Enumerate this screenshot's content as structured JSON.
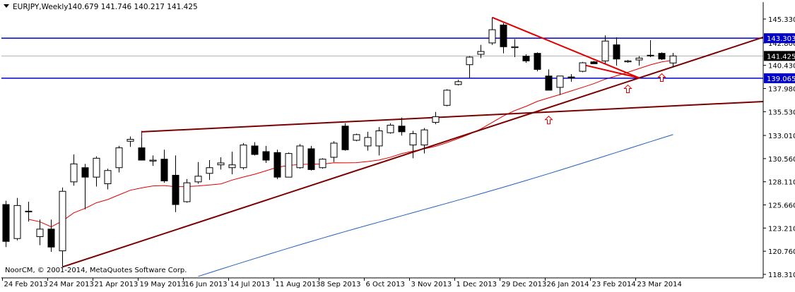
{
  "header": {
    "symbol": "EURJPY,Weekly",
    "ohlc": "140.679 141.746 140.217 141.425"
  },
  "copyright": "NoorCM, © 2001-2014, MetaQuotes Software Corp.",
  "colors": {
    "background": "#ffffff",
    "bull_candle": "#ffffff",
    "bear_candle": "#000000",
    "candle_outline": "#000000",
    "level_line": "#0000cc",
    "trendline": "#7a0000",
    "wedge_line": "#e00000",
    "ma_fast": "#e00000",
    "ma_slow": "#1f5fbf",
    "arrow": "#e00000",
    "current_price_box": "#000000",
    "level_box": "#0000cc"
  },
  "chart_data": {
    "type": "candlestick",
    "timeframe": "Weekly",
    "ylim": [
      118.3,
      146.5
    ],
    "y_ticks": [
      "145.330",
      "142.800",
      "140.430",
      "137.980",
      "135.530",
      "133.010",
      "130.560",
      "128.110",
      "125.660",
      "123.210",
      "120.760",
      "118.310"
    ],
    "x_ticks": [
      "24 Feb 2013",
      "24 Mar 2013",
      "21 Apr 2013",
      "19 May 2013",
      "16 Jun 2013",
      "14 Jul 2013",
      "11 Aug 2013",
      "8 Sep 2013",
      "6 Oct 2013",
      "3 Nov 2013",
      "1 Dec 2013",
      "29 Dec 2013",
      "26 Jan 2014",
      "23 Feb 2014",
      "23 Mar 2014"
    ],
    "x_tick_index": [
      0,
      4,
      8,
      12,
      16,
      20,
      24,
      28,
      32,
      36,
      40,
      44,
      48,
      52,
      56
    ],
    "candles": [
      {
        "o": 125.7,
        "h": 126.1,
        "l": 121.2,
        "c": 121.8
      },
      {
        "o": 122.1,
        "h": 126.4,
        "l": 121.9,
        "c": 125.6
      },
      {
        "o": 125.0,
        "h": 126.0,
        "l": 123.9,
        "c": 125.0
      },
      {
        "o": 122.3,
        "h": 124.1,
        "l": 121.4,
        "c": 123.1
      },
      {
        "o": 123.1,
        "h": 124.1,
        "l": 120.7,
        "c": 121.2
      },
      {
        "o": 120.8,
        "h": 127.5,
        "l": 119.1,
        "c": 127.1
      },
      {
        "o": 128.1,
        "h": 131.0,
        "l": 127.7,
        "c": 130.0
      },
      {
        "o": 129.6,
        "h": 130.0,
        "l": 125.2,
        "c": 128.6
      },
      {
        "o": 128.6,
        "h": 130.8,
        "l": 127.6,
        "c": 130.6
      },
      {
        "o": 127.9,
        "h": 129.5,
        "l": 127.3,
        "c": 129.3
      },
      {
        "o": 129.6,
        "h": 131.9,
        "l": 129.1,
        "c": 131.7
      },
      {
        "o": 132.4,
        "h": 132.9,
        "l": 131.8,
        "c": 132.6
      },
      {
        "o": 131.7,
        "h": 132.8,
        "l": 130.4,
        "c": 130.4
      },
      {
        "o": 130.3,
        "h": 130.9,
        "l": 129.8,
        "c": 130.4
      },
      {
        "o": 130.5,
        "h": 131.5,
        "l": 128.0,
        "c": 128.2
      },
      {
        "o": 128.8,
        "h": 130.9,
        "l": 124.9,
        "c": 125.7
      },
      {
        "o": 126.0,
        "h": 128.4,
        "l": 125.9,
        "c": 128.0
      },
      {
        "o": 128.1,
        "h": 130.2,
        "l": 127.9,
        "c": 128.7
      },
      {
        "o": 129.0,
        "h": 130.4,
        "l": 128.3,
        "c": 129.6
      },
      {
        "o": 129.9,
        "h": 130.7,
        "l": 129.4,
        "c": 130.1
      },
      {
        "o": 129.6,
        "h": 131.3,
        "l": 128.9,
        "c": 129.9
      },
      {
        "o": 129.6,
        "h": 132.2,
        "l": 129.4,
        "c": 132.0
      },
      {
        "o": 131.9,
        "h": 132.3,
        "l": 130.9,
        "c": 131.0
      },
      {
        "o": 131.3,
        "h": 131.9,
        "l": 130.1,
        "c": 130.4
      },
      {
        "o": 131.2,
        "h": 131.5,
        "l": 128.4,
        "c": 128.6
      },
      {
        "o": 128.6,
        "h": 131.2,
        "l": 128.6,
        "c": 131.1
      },
      {
        "o": 129.6,
        "h": 132.1,
        "l": 129.5,
        "c": 131.9
      },
      {
        "o": 131.6,
        "h": 131.9,
        "l": 129.3,
        "c": 129.4
      },
      {
        "o": 129.6,
        "h": 130.6,
        "l": 129.5,
        "c": 130.5
      },
      {
        "o": 130.7,
        "h": 132.4,
        "l": 130.2,
        "c": 132.2
      },
      {
        "o": 134.0,
        "h": 134.3,
        "l": 131.4,
        "c": 131.5
      },
      {
        "o": 132.5,
        "h": 133.2,
        "l": 132.4,
        "c": 133.1
      },
      {
        "o": 131.9,
        "h": 133.4,
        "l": 131.4,
        "c": 132.8
      },
      {
        "o": 131.9,
        "h": 133.9,
        "l": 130.9,
        "c": 133.5
      },
      {
        "o": 133.3,
        "h": 134.3,
        "l": 133.2,
        "c": 134.1
      },
      {
        "o": 134.0,
        "h": 134.9,
        "l": 133.0,
        "c": 133.4
      },
      {
        "o": 132.0,
        "h": 133.5,
        "l": 130.6,
        "c": 133.2
      },
      {
        "o": 132.0,
        "h": 133.8,
        "l": 131.1,
        "c": 133.6
      },
      {
        "o": 134.4,
        "h": 135.5,
        "l": 134.2,
        "c": 135.0
      },
      {
        "o": 136.2,
        "h": 137.9,
        "l": 136.1,
        "c": 137.8
      },
      {
        "o": 138.4,
        "h": 138.9,
        "l": 138.3,
        "c": 138.7
      },
      {
        "o": 140.5,
        "h": 141.4,
        "l": 139.1,
        "c": 141.3
      },
      {
        "o": 141.6,
        "h": 142.6,
        "l": 141.2,
        "c": 141.9
      },
      {
        "o": 142.8,
        "h": 145.5,
        "l": 142.6,
        "c": 144.2
      },
      {
        "o": 144.7,
        "h": 144.9,
        "l": 141.7,
        "c": 142.4
      },
      {
        "o": 142.3,
        "h": 143.2,
        "l": 141.3,
        "c": 142.4
      },
      {
        "o": 141.4,
        "h": 141.6,
        "l": 140.7,
        "c": 140.9
      },
      {
        "o": 141.7,
        "h": 141.8,
        "l": 139.8,
        "c": 140.0
      },
      {
        "o": 139.3,
        "h": 140.0,
        "l": 137.8,
        "c": 137.8
      },
      {
        "o": 138.1,
        "h": 139.3,
        "l": 137.3,
        "c": 139.3
      },
      {
        "o": 139.2,
        "h": 139.5,
        "l": 138.7,
        "c": 139.1
      },
      {
        "o": 139.8,
        "h": 140.8,
        "l": 139.7,
        "c": 140.7
      },
      {
        "o": 140.8,
        "h": 140.9,
        "l": 140.6,
        "c": 140.6
      },
      {
        "o": 140.9,
        "h": 143.6,
        "l": 140.6,
        "c": 143.0
      },
      {
        "o": 142.6,
        "h": 143.4,
        "l": 140.4,
        "c": 141.1
      },
      {
        "o": 140.8,
        "h": 141.0,
        "l": 140.7,
        "c": 140.9
      },
      {
        "o": 141.0,
        "h": 141.4,
        "l": 140.4,
        "c": 141.2
      },
      {
        "o": 141.5,
        "h": 143.1,
        "l": 141.3,
        "c": 141.5
      },
      {
        "o": 141.7,
        "h": 141.8,
        "l": 141.0,
        "c": 141.1
      },
      {
        "o": 140.679,
        "h": 141.746,
        "l": 140.217,
        "c": 141.425
      }
    ],
    "levels": [
      {
        "price": 143.303,
        "label": "143.303"
      },
      {
        "price": 139.065,
        "label": "139.065"
      }
    ],
    "current_price": {
      "price": 141.425,
      "label": "141.425"
    }
  }
}
